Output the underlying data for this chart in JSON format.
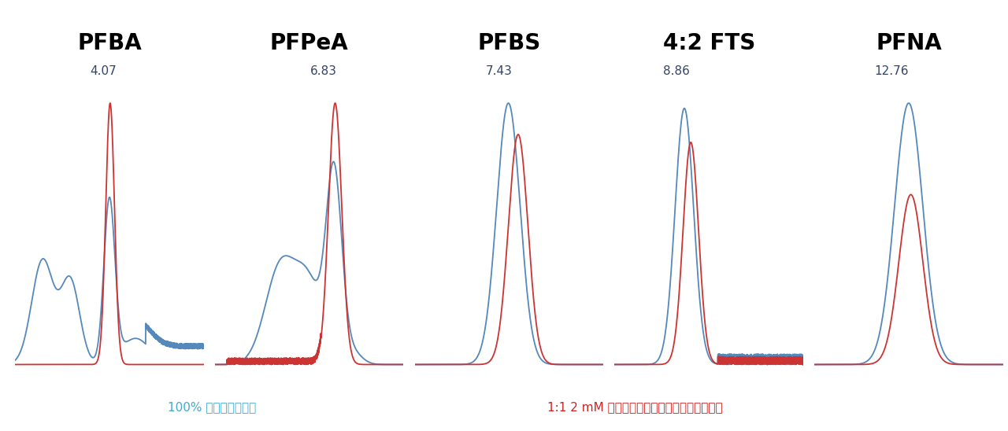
{
  "compounds": [
    "PFBA",
    "PFPeA",
    "PFBS",
    "4:2 FTS",
    "PFNA"
  ],
  "retention_times": [
    4.07,
    6.83,
    7.43,
    8.86,
    12.76
  ],
  "title_fontsize": 20,
  "rt_fontsize": 11,
  "label_blue": "100% アセトニトリル",
  "label_red": "1:1 2 mM 酢酸アンモニウム：アセトニトリル",
  "blue_color": "#5588BB",
  "red_color": "#CC3333",
  "background": "#FFFFFF",
  "label_blue_color": "#44AACC",
  "label_red_color": "#CC2222"
}
